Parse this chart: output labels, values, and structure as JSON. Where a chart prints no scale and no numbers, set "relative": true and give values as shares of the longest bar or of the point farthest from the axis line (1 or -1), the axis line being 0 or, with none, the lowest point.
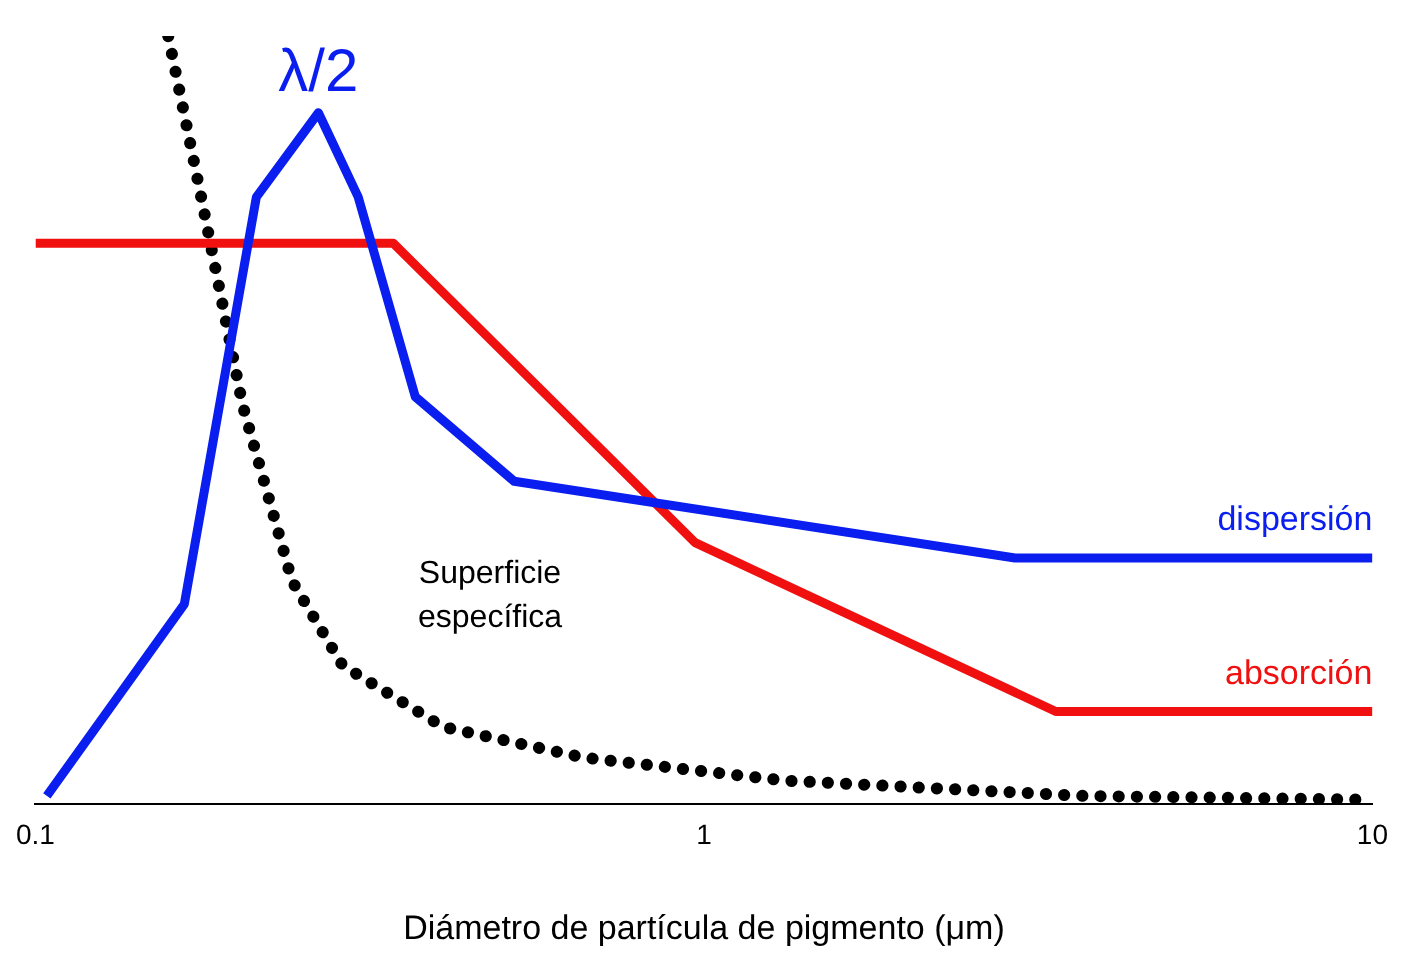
{
  "chart_data": {
    "type": "line",
    "relative": true,
    "log": "x",
    "xlim": [
      0.1,
      10
    ],
    "xticks": [
      0.1,
      1,
      10
    ],
    "xlabel": "Diámetro de partícula de pigmento (μm)",
    "grid": false,
    "legend": false,
    "marker": "none",
    "tick_labels": "x",
    "series": [
      {
        "name": "dispersión",
        "color": "#0a1ef0",
        "line_style": "solid",
        "x": [
          0.104,
          0.167,
          0.214,
          0.265,
          0.304,
          0.37,
          0.52,
          2.92,
          10
        ],
        "values": [
          0.01,
          0.26,
          0.79,
          0.9,
          0.79,
          0.53,
          0.42,
          0.32,
          0.32
        ]
      },
      {
        "name": "absorción",
        "color": "#f01010",
        "line_style": "solid",
        "x": [
          0.1,
          0.343,
          0.97,
          3.36,
          10
        ],
        "values": [
          0.73,
          0.73,
          0.34,
          0.12,
          0.12
        ]
      },
      {
        "color": "#000000",
        "line_style": "dotted",
        "x": [
          0.158,
          0.177,
          0.204,
          0.242,
          0.288,
          0.407,
          0.66,
          1.32,
          3.7,
          10
        ],
        "values": [
          1,
          0.79,
          0.52,
          0.29,
          0.18,
          0.1,
          0.06,
          0.03,
          0.01,
          0.005
        ]
      }
    ],
    "annotations": [
      {
        "text": "λ/2",
        "x": 0.265,
        "y": 0.9
      },
      "Superficie específica"
    ]
  }
}
